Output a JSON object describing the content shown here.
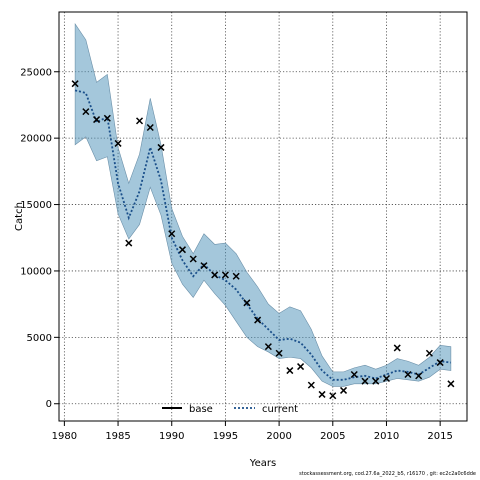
{
  "chart_data": {
    "type": "line",
    "title": "",
    "xlabel": "Years",
    "ylabel": "Catch",
    "xlim": [
      1979.5,
      2017.5
    ],
    "ylim": [
      -1300,
      29500
    ],
    "x_ticks": [
      1980,
      1985,
      1990,
      1995,
      2000,
      2005,
      2010,
      2015
    ],
    "y_ticks": [
      0,
      5000,
      10000,
      15000,
      20000,
      25000
    ],
    "grid": true,
    "grid_style": "dotted",
    "legend_position": "bottom-center",
    "colors": {
      "band": "#4a90b8",
      "current": "#1a4f8a",
      "observed": "#000000"
    },
    "years": [
      1981,
      1982,
      1983,
      1984,
      1985,
      1986,
      1987,
      1988,
      1989,
      1990,
      1991,
      1992,
      1993,
      1994,
      1995,
      1996,
      1997,
      1998,
      1999,
      2000,
      2001,
      2002,
      2003,
      2004,
      2005,
      2006,
      2007,
      2008,
      2009,
      2010,
      2011,
      2012,
      2013,
      2014,
      2015,
      2016
    ],
    "series": [
      {
        "name": "base",
        "values": [
          null,
          null,
          null,
          null,
          null,
          null,
          null,
          null,
          null,
          null,
          null,
          null,
          null,
          null,
          null,
          null,
          null,
          null,
          null,
          null,
          null,
          null,
          null,
          null,
          null,
          null,
          null,
          null,
          null,
          null,
          null,
          null,
          null,
          null,
          null,
          null
        ]
      },
      {
        "name": "current",
        "style": "dotted",
        "values": [
          23600,
          23400,
          21200,
          21600,
          16600,
          14000,
          16000,
          19300,
          16800,
          12500,
          10800,
          9600,
          10500,
          9700,
          9300,
          8600,
          7500,
          6400,
          5600,
          4800,
          4900,
          4600,
          3700,
          2500,
          1800,
          1800,
          2000,
          2100,
          1900,
          2200,
          2500,
          2400,
          2200,
          2700,
          3200,
          3100
        ]
      }
    ],
    "band": {
      "upper": [
        28600,
        27400,
        24200,
        24800,
        19300,
        16600,
        18800,
        23000,
        19500,
        14700,
        12600,
        11300,
        12800,
        12000,
        12100,
        11300,
        9900,
        8800,
        7500,
        6800,
        7300,
        7000,
        5600,
        3600,
        2400,
        2400,
        2700,
        2900,
        2600,
        2900,
        3400,
        3200,
        2900,
        3500,
        4400,
        4300
      ],
      "lower": [
        19500,
        20100,
        18300,
        18600,
        14300,
        12400,
        13500,
        16300,
        14200,
        10600,
        9000,
        8000,
        9300,
        8300,
        7400,
        6200,
        5000,
        4300,
        3900,
        3400,
        3500,
        3400,
        2700,
        1700,
        1300,
        1300,
        1500,
        1500,
        1500,
        1700,
        1900,
        1800,
        1700,
        2000,
        2600,
        2500
      ]
    },
    "observed": [
      {
        "x": 1981,
        "y": 24100
      },
      {
        "x": 1982,
        "y": 22000
      },
      {
        "x": 1983,
        "y": 21400
      },
      {
        "x": 1984,
        "y": 21500
      },
      {
        "x": 1985,
        "y": 19600
      },
      {
        "x": 1986,
        "y": 12100
      },
      {
        "x": 1987,
        "y": 21300
      },
      {
        "x": 1988,
        "y": 20800
      },
      {
        "x": 1989,
        "y": 19300
      },
      {
        "x": 1990,
        "y": 12800
      },
      {
        "x": 1991,
        "y": 11600
      },
      {
        "x": 1992,
        "y": 10900
      },
      {
        "x": 1993,
        "y": 10400
      },
      {
        "x": 1994,
        "y": 9700
      },
      {
        "x": 1995,
        "y": 9700
      },
      {
        "x": 1996,
        "y": 9600
      },
      {
        "x": 1997,
        "y": 7600
      },
      {
        "x": 1998,
        "y": 6300
      },
      {
        "x": 1999,
        "y": 4300
      },
      {
        "x": 2000,
        "y": 3800
      },
      {
        "x": 2001,
        "y": 2500
      },
      {
        "x": 2002,
        "y": 2800
      },
      {
        "x": 2003,
        "y": 1400
      },
      {
        "x": 2004,
        "y": 700
      },
      {
        "x": 2005,
        "y": 600
      },
      {
        "x": 2006,
        "y": 1000
      },
      {
        "x": 2007,
        "y": 2200
      },
      {
        "x": 2008,
        "y": 1700
      },
      {
        "x": 2009,
        "y": 1700
      },
      {
        "x": 2010,
        "y": 1900
      },
      {
        "x": 2011,
        "y": 4200
      },
      {
        "x": 2012,
        "y": 2200
      },
      {
        "x": 2013,
        "y": 2100
      },
      {
        "x": 2014,
        "y": 3800
      },
      {
        "x": 2015,
        "y": 3100
      },
      {
        "x": 2016,
        "y": 1500
      }
    ]
  },
  "legend": {
    "base_label": "base",
    "current_label": "current"
  },
  "footer": {
    "text": "stockassessment.org, cod.27.6a_2022_b5, r16170 , git: ec2c2a0c6dde"
  }
}
